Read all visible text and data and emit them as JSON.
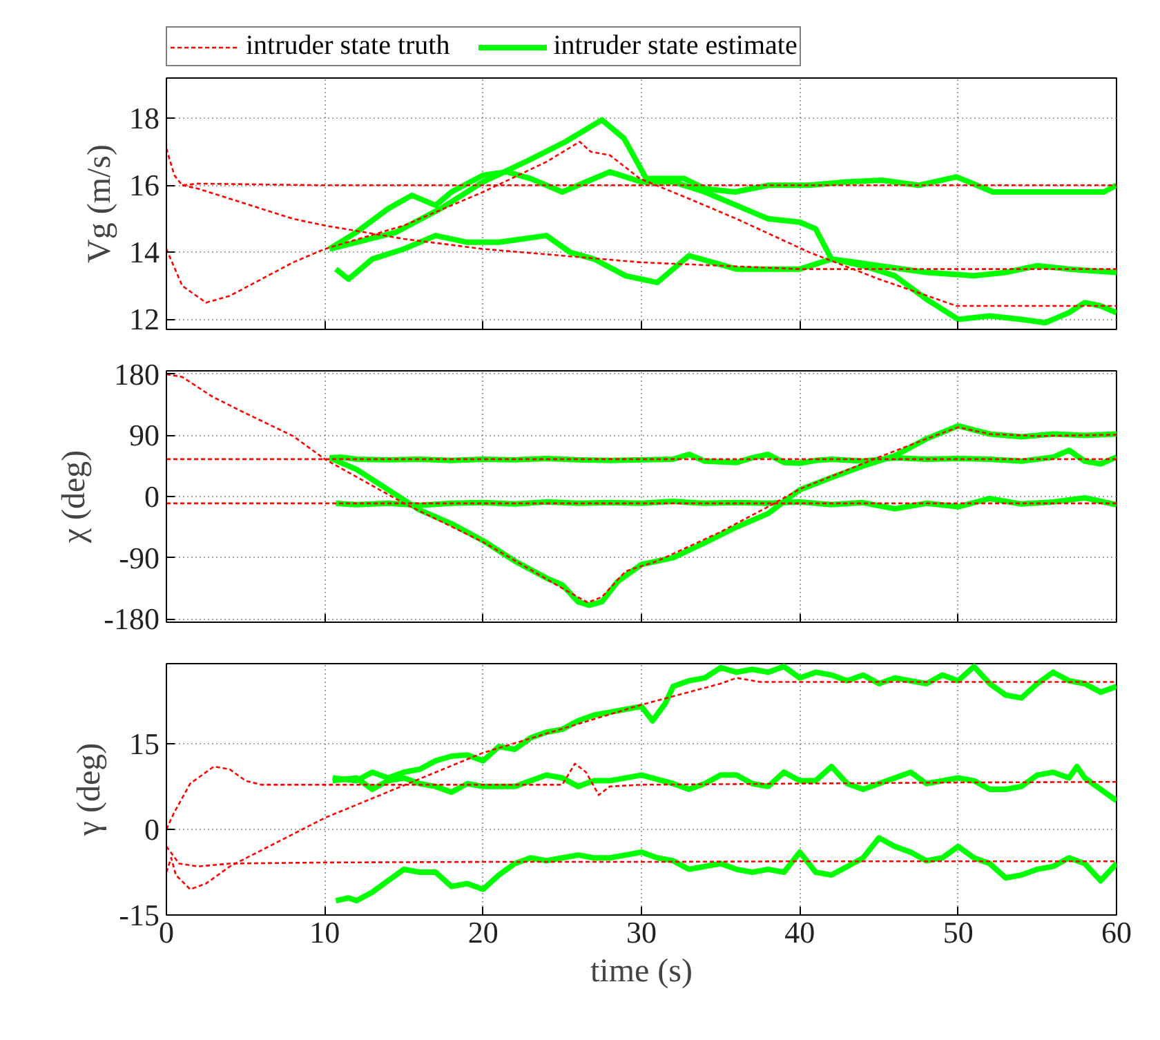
{
  "chart_data": [
    {
      "type": "line",
      "ylabel": "Vg (m/s)",
      "xlim": [
        0,
        60
      ],
      "xticks": [
        0,
        10,
        20,
        30,
        40,
        50,
        60
      ],
      "ylim": [
        11.7,
        19.2
      ],
      "yticks": [
        12,
        14,
        16,
        18
      ],
      "grid": true,
      "legend": "top",
      "tick_labels": "y",
      "series": [
        {
          "name": "intruder state truth",
          "color": "#ff0000",
          "line_style": "dashed",
          "x": [
            0,
            0.5,
            1,
            2,
            10,
            20,
            30,
            40,
            50,
            60
          ],
          "values": [
            17.1,
            16.3,
            16.0,
            16.05,
            16.0,
            16.0,
            16.0,
            16.0,
            16.0,
            16.0
          ]
        },
        {
          "color": "#ff0000",
          "line_style": "dashed",
          "x": [
            0,
            1,
            2.5,
            4,
            6,
            8,
            10,
            15,
            20,
            24,
            26.1,
            26.8,
            28,
            29.9,
            33,
            36,
            40.6,
            45,
            49.9,
            55,
            60
          ],
          "values": [
            14.1,
            13.0,
            12.5,
            12.7,
            13.2,
            13.7,
            14.1,
            14.8,
            15.8,
            16.7,
            17.3,
            17.0,
            16.9,
            16.2,
            15.6,
            15.0,
            14.0,
            13.2,
            12.4,
            12.4,
            12.4
          ]
        },
        {
          "color": "#ff0000",
          "line_style": "dashed",
          "x": [
            1,
            2,
            4,
            6,
            8,
            10,
            15,
            20,
            25,
            30,
            35,
            40,
            45,
            50,
            55,
            60
          ],
          "values": [
            16.0,
            15.9,
            15.6,
            15.3,
            15.0,
            14.8,
            14.4,
            14.1,
            13.9,
            13.7,
            13.6,
            13.5,
            13.5,
            13.5,
            13.5,
            13.5
          ]
        },
        {
          "name": "intruder state estimate",
          "color": "#00ff00",
          "line_style": "solid",
          "x": [
            10.3,
            12,
            14.5,
            17.3,
            20,
            22.9,
            25.2,
            27.5,
            28.9,
            30.3,
            32.7,
            34,
            35.9,
            38,
            40.6,
            42.9,
            45.2,
            47.5,
            49.9,
            52.2,
            54.5,
            56.8,
            59.2,
            60
          ],
          "values": [
            14.1,
            14.3,
            14.6,
            15.3,
            16.1,
            16.75,
            17.3,
            17.95,
            17.4,
            16.2,
            16.2,
            15.9,
            15.8,
            16.0,
            16.0,
            16.1,
            16.15,
            16.0,
            16.25,
            15.8,
            15.8,
            15.8,
            15.8,
            16.0
          ]
        },
        {
          "color": "#00ff00",
          "line_style": "solid",
          "x": [
            10.3,
            12,
            14,
            15.5,
            17,
            18,
            20,
            21.5,
            23,
            25,
            26.5,
            28,
            30,
            32,
            34,
            36,
            38,
            40,
            41,
            42,
            44,
            46,
            48,
            50,
            52,
            54,
            55.5,
            57,
            58,
            59,
            60
          ],
          "values": [
            14.1,
            14.6,
            15.3,
            15.7,
            15.4,
            15.8,
            16.3,
            16.4,
            16.2,
            15.8,
            16.1,
            16.4,
            16.1,
            16.1,
            15.8,
            15.4,
            15.0,
            14.9,
            14.7,
            13.8,
            13.6,
            13.3,
            12.6,
            12.0,
            12.1,
            12.0,
            11.9,
            12.2,
            12.5,
            12.4,
            12.2
          ]
        },
        {
          "color": "#00ff00",
          "line_style": "solid",
          "x": [
            10.7,
            11.5,
            13,
            15,
            17,
            19,
            21,
            24,
            25.5,
            27,
            29,
            31,
            33,
            34.5,
            36,
            38,
            40,
            42,
            45,
            48,
            51,
            53,
            55,
            57,
            60
          ],
          "values": [
            13.5,
            13.2,
            13.8,
            14.1,
            14.5,
            14.3,
            14.3,
            14.5,
            14.0,
            13.8,
            13.3,
            13.1,
            13.9,
            13.7,
            13.5,
            13.5,
            13.5,
            13.8,
            13.6,
            13.4,
            13.3,
            13.4,
            13.6,
            13.5,
            13.4
          ]
        }
      ]
    },
    {
      "type": "line",
      "ylabel": "χ (deg)",
      "xlim": [
        0,
        60
      ],
      "xticks": [
        0,
        10,
        20,
        30,
        40,
        50,
        60
      ],
      "ylim": [
        -185,
        185
      ],
      "yticks": [
        180,
        90,
        0,
        -90,
        -180
      ],
      "grid": true,
      "tick_labels": "y",
      "series": [
        {
          "color": "#ff0000",
          "line_style": "dashed",
          "x": [
            0,
            10,
            20,
            30,
            40,
            50,
            60
          ],
          "values": [
            55,
            55,
            55,
            55,
            55,
            55,
            55
          ]
        },
        {
          "color": "#ff0000",
          "line_style": "dashed",
          "x": [
            0,
            10,
            20,
            30,
            40,
            50,
            60
          ],
          "values": [
            -10,
            -10,
            -10,
            -10,
            -10,
            -10,
            -10
          ]
        },
        {
          "color": "#ff0000",
          "line_style": "dashed",
          "x": [
            0,
            1,
            2.9,
            4.7,
            8,
            10,
            15,
            20,
            25,
            26.6,
            27.5,
            29,
            31,
            35,
            38,
            40,
            45,
            48,
            50,
            52,
            55,
            60
          ],
          "values": [
            180,
            176,
            147,
            126,
            89,
            55,
            -10,
            -67,
            -135,
            -156,
            -148,
            -110,
            -95,
            -52,
            -15,
            11,
            58,
            85,
            102,
            92,
            89,
            91
          ]
        },
        {
          "color": "#00ff00",
          "line_style": "solid",
          "x": [
            10.3,
            11,
            12,
            14,
            16,
            18,
            20,
            22,
            24,
            26,
            28,
            30,
            32,
            33,
            34,
            36,
            37,
            38,
            39,
            40,
            41,
            42,
            44,
            46,
            48,
            50,
            52,
            54,
            56,
            57,
            58,
            59,
            60
          ],
          "values": [
            57,
            58,
            55,
            54,
            55,
            53,
            55,
            54,
            56,
            54,
            53,
            54,
            55,
            62,
            52,
            50,
            57,
            62,
            50,
            49,
            53,
            55,
            52,
            57,
            55,
            56,
            55,
            52,
            58,
            68,
            52,
            48,
            58
          ]
        },
        {
          "color": "#00ff00",
          "line_style": "solid",
          "x": [
            10.3,
            12,
            14,
            16,
            18,
            20,
            22,
            24,
            25,
            26,
            26.7,
            27.5,
            28.5,
            30,
            32,
            34,
            36,
            38,
            40,
            42,
            44,
            46,
            48,
            50,
            51,
            52,
            54,
            56,
            58,
            60
          ],
          "values": [
            57,
            40,
            10,
            -20,
            -40,
            -65,
            -95,
            -120,
            -130,
            -155,
            -160,
            -155,
            -125,
            -100,
            -90,
            -68,
            -45,
            -25,
            10,
            28,
            45,
            60,
            85,
            104,
            98,
            92,
            88,
            92,
            90,
            92
          ]
        },
        {
          "color": "#00ff00",
          "line_style": "solid",
          "x": [
            10.7,
            12,
            14,
            16,
            18,
            20,
            22,
            24,
            26,
            28,
            30,
            32,
            34,
            36,
            38,
            40,
            42,
            44,
            46,
            48,
            50,
            52,
            54,
            56,
            58,
            60
          ],
          "values": [
            -10,
            -12,
            -10,
            -13,
            -10,
            -9,
            -11,
            -8,
            -10,
            -9,
            -10,
            -7,
            -10,
            -9,
            -10,
            -8,
            -12,
            -9,
            -18,
            -10,
            -15,
            -3,
            -11,
            -8,
            -2,
            -12
          ]
        }
      ]
    },
    {
      "type": "line",
      "ylabel": "γ (deg)",
      "xlabel": "time (s)",
      "xlim": [
        0,
        60
      ],
      "xticks": [
        0,
        10,
        20,
        30,
        40,
        50,
        60
      ],
      "ylim": [
        -15,
        29
      ],
      "yticks": [
        -15,
        0,
        15
      ],
      "grid": true,
      "series": [
        {
          "color": "#ff0000",
          "line_style": "dashed",
          "x": [
            0,
            0.5,
            1.5,
            3,
            4,
            5,
            6,
            10,
            20,
            25,
            25.8,
            26.5,
            27.3,
            28,
            30,
            40,
            50,
            60
          ],
          "values": [
            0,
            3,
            8,
            11,
            10.5,
            8.5,
            7.8,
            7.8,
            7.8,
            7.8,
            11.5,
            10,
            6,
            7.5,
            7.8,
            8.0,
            8.2,
            8.3
          ]
        },
        {
          "color": "#ff0000",
          "line_style": "dashed",
          "x": [
            0,
            0.3,
            0.6,
            1.5,
            2.5,
            4,
            10,
            20,
            30,
            35,
            36,
            37.5,
            40,
            50,
            60
          ],
          "values": [
            -7.5,
            -5,
            -8,
            -10.5,
            -9.5,
            -6.5,
            2,
            13.4,
            21.8,
            25.5,
            26.5,
            25.8,
            25.8,
            25.8,
            25.8
          ]
        },
        {
          "color": "#ff0000",
          "line_style": "dashed",
          "x": [
            0,
            0.8,
            2,
            4,
            10,
            20,
            30,
            40,
            50,
            60
          ],
          "values": [
            -3,
            -6,
            -6.5,
            -6,
            -5.8,
            -5.7,
            -5.7,
            -5.6,
            -5.6,
            -5.6
          ]
        },
        {
          "color": "#00ff00",
          "line_style": "solid",
          "x": [
            10.5,
            12,
            13,
            14,
            15,
            16,
            17,
            18,
            19,
            20,
            21,
            22,
            23,
            24,
            25,
            26,
            27,
            28,
            29,
            30,
            30.7,
            31.5,
            32,
            33,
            34,
            35,
            36,
            37,
            38,
            39,
            40,
            41,
            42,
            43,
            44,
            45,
            46,
            47,
            48,
            49,
            50,
            51,
            52,
            53,
            54,
            55,
            56,
            57,
            58,
            59,
            60
          ],
          "values": [
            9,
            8.5,
            10,
            9,
            10,
            10.5,
            12,
            12.8,
            13,
            12,
            14.5,
            14,
            16,
            17,
            17.5,
            19,
            20,
            20.5,
            21,
            21.5,
            19,
            22,
            25,
            26,
            26.5,
            28.3,
            27.5,
            28,
            27.5,
            28.5,
            26.5,
            27.5,
            27,
            26,
            27,
            25.5,
            26.5,
            26,
            25.5,
            27,
            26,
            28.5,
            25.5,
            23.5,
            23,
            25.5,
            27.5,
            26,
            25.5,
            24,
            25
          ]
        },
        {
          "color": "#00ff00",
          "line_style": "solid",
          "x": [
            10.5,
            12,
            13,
            14,
            15,
            16,
            17,
            18,
            19,
            20,
            22,
            24,
            25,
            26,
            27,
            28,
            30,
            32,
            33,
            34,
            35,
            36,
            37,
            38,
            39,
            40,
            41,
            42,
            43,
            44,
            45,
            46,
            47,
            48,
            49,
            50,
            51,
            52,
            53,
            54,
            55,
            56,
            57,
            57.5,
            58,
            59,
            60
          ],
          "values": [
            8.5,
            9,
            7,
            8.5,
            9,
            8,
            7.5,
            6.5,
            8,
            7.5,
            7.5,
            9.5,
            9,
            7.5,
            8.5,
            8.5,
            9.5,
            8,
            7,
            8,
            9.5,
            9.5,
            8,
            7.5,
            10,
            8.5,
            8.5,
            11,
            8,
            7,
            8,
            9,
            10,
            8,
            8.5,
            9,
            8.5,
            7,
            7,
            7.5,
            9.5,
            10,
            9,
            11,
            9,
            7,
            5
          ]
        },
        {
          "color": "#00ff00",
          "line_style": "solid",
          "x": [
            10.7,
            11.5,
            12,
            13,
            14,
            15,
            16,
            17,
            18,
            19,
            20,
            21,
            22,
            23,
            24,
            25,
            26,
            27,
            28,
            29,
            30,
            31,
            32,
            33,
            34,
            35,
            36,
            37,
            38,
            39,
            40,
            41,
            42,
            43,
            44,
            45,
            46,
            47,
            48,
            49,
            50,
            51,
            52,
            53,
            54,
            55,
            56,
            57,
            58,
            59,
            60
          ],
          "values": [
            -12.5,
            -12,
            -12.5,
            -11,
            -9,
            -7,
            -7.5,
            -7.5,
            -10,
            -9.5,
            -10.5,
            -8,
            -6,
            -5,
            -5.5,
            -5,
            -4.5,
            -5,
            -5,
            -4.5,
            -4,
            -5,
            -5.5,
            -7,
            -6.5,
            -6,
            -7,
            -7.5,
            -7,
            -7.5,
            -4,
            -7.5,
            -8,
            -6.5,
            -5,
            -1.5,
            -3,
            -4,
            -5.5,
            -5,
            -3,
            -5,
            -6,
            -8.5,
            -8,
            -7,
            -6.5,
            -5,
            -6,
            -9,
            -6
          ]
        }
      ]
    }
  ]
}
